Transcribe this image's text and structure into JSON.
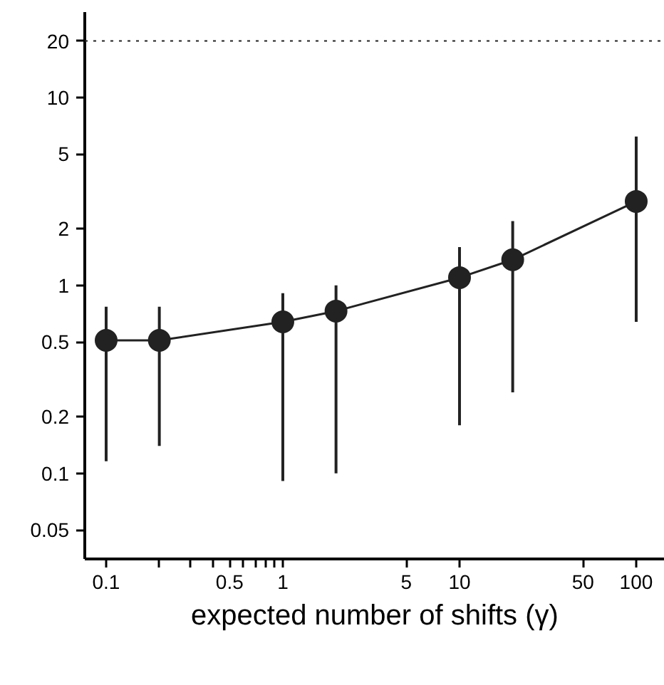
{
  "chart_data": {
    "type": "scatter",
    "xlabel": "expected number of shifts (γ)",
    "log": "xy",
    "marker": "circle",
    "grid": false,
    "x": [
      0.1,
      0.2,
      1,
      2,
      10,
      20,
      100
    ],
    "series": [
      {
        "type": "line",
        "color": "#222222",
        "values": [
          0.51,
          0.51,
          0.64,
          0.73,
          1.1,
          1.37,
          2.8
        ],
        "errors": [
          [
            0.116,
            0.77
          ],
          [
            0.14,
            0.77
          ],
          [
            0.091,
            0.91
          ],
          [
            0.1,
            1.0
          ],
          [
            0.18,
            1.6
          ],
          [
            0.27,
            2.2
          ],
          [
            0.64,
            6.2
          ]
        ]
      }
    ],
    "xlim": [
      0.0757,
      145
    ],
    "ylim": [
      0.035,
      28.5
    ],
    "xticks": [
      0.1,
      {
        "value": 0.2,
        "label": null
      },
      {
        "value": 0.3,
        "label": null
      },
      {
        "value": 0.4,
        "label": null
      },
      0.5,
      {
        "value": 0.6,
        "label": null
      },
      {
        "value": 0.7,
        "label": null
      },
      {
        "value": 0.8,
        "label": null
      },
      {
        "value": 0.9,
        "label": null
      },
      1,
      5,
      10,
      50,
      100
    ],
    "yticks": [
      0.05,
      0.1,
      0.2,
      0.5,
      1,
      2,
      5,
      10,
      20
    ],
    "ref_lines": [
      {
        "axis": "y",
        "value": 20,
        "line_style": "dotted",
        "color": "#222222"
      }
    ]
  }
}
